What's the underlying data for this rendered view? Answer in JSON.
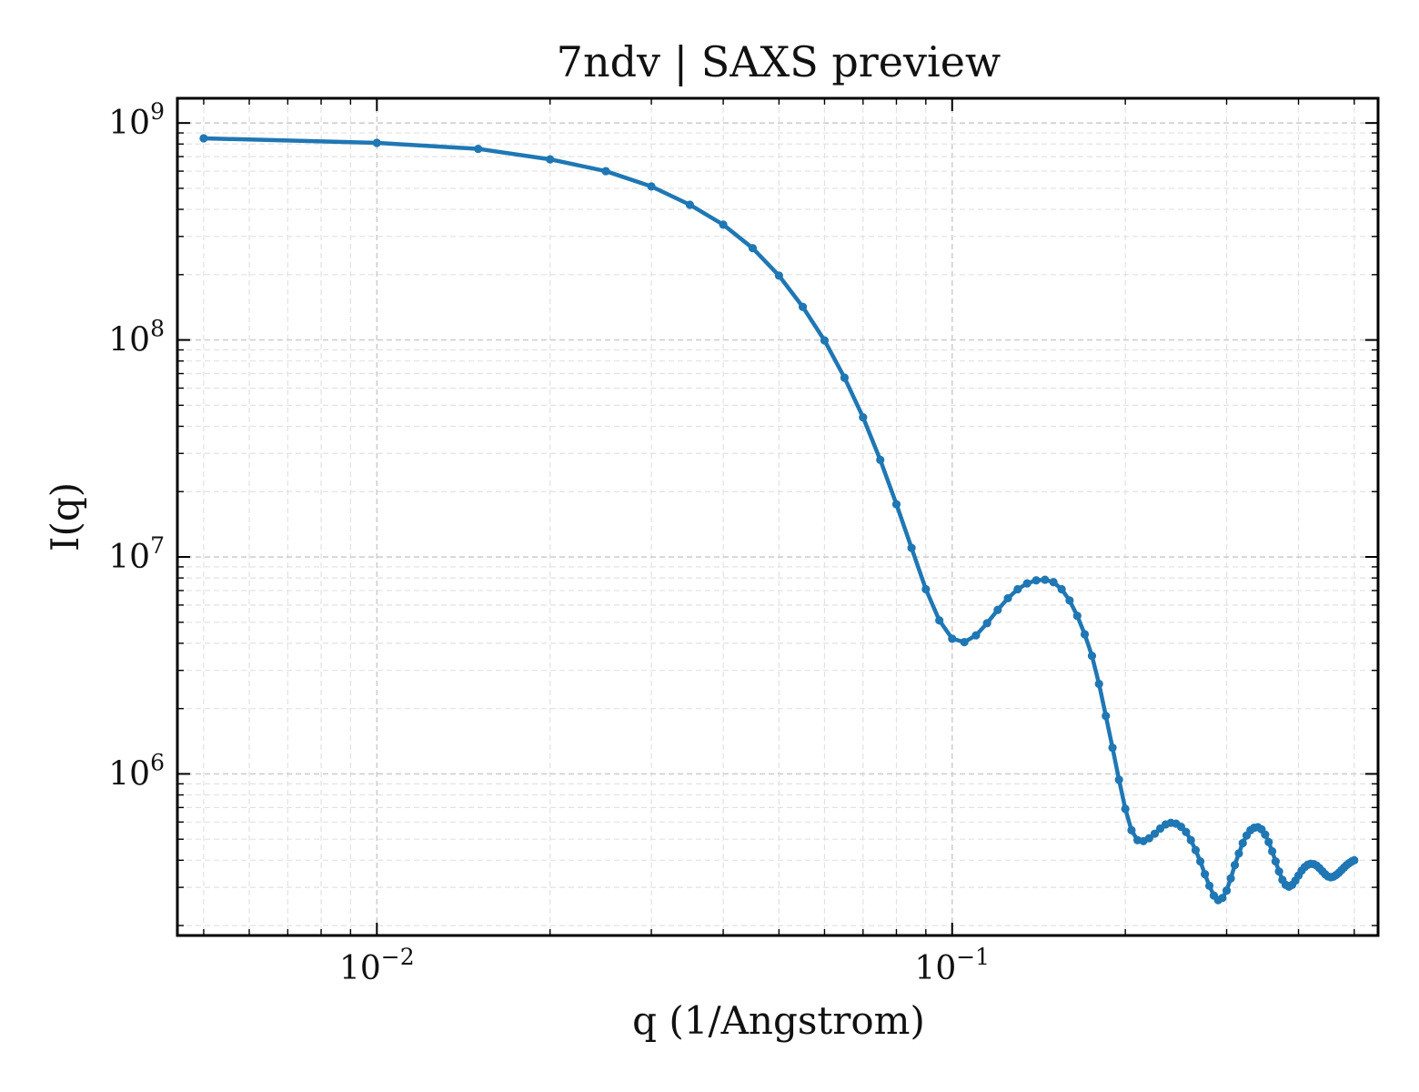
{
  "chart_data": {
    "type": "line",
    "title": "7ndv | SAXS preview",
    "xlabel": "q (1/Angstrom)",
    "ylabel": "I(q)",
    "xscale": "log",
    "yscale": "log",
    "xlim": [
      0.0045,
      0.55
    ],
    "ylim": [
      180000,
      1300000000
    ],
    "grid": true,
    "legend": "none",
    "color": "#1f77b4",
    "x_ticks": [
      {
        "value": 0.01,
        "base": "10",
        "exp": "−2"
      },
      {
        "value": 0.1,
        "base": "10",
        "exp": "−1"
      }
    ],
    "y_ticks": [
      {
        "value": 1000000,
        "base": "10",
        "exp": "6"
      },
      {
        "value": 10000000,
        "base": "10",
        "exp": "7"
      },
      {
        "value": 100000000,
        "base": "10",
        "exp": "8"
      },
      {
        "value": 1000000000,
        "base": "10",
        "exp": "9"
      }
    ],
    "series": [
      {
        "x": [
          0.005,
          0.01,
          0.015,
          0.02,
          0.025,
          0.03,
          0.035,
          0.04,
          0.045,
          0.05,
          0.055,
          0.06,
          0.065,
          0.07,
          0.075,
          0.08,
          0.085,
          0.09,
          0.095,
          0.1,
          0.105,
          0.11,
          0.115,
          0.12,
          0.125,
          0.13,
          0.135,
          0.14,
          0.145,
          0.15,
          0.155,
          0.16,
          0.165,
          0.17,
          0.175,
          0.18,
          0.185,
          0.19,
          0.195,
          0.2,
          0.205,
          0.21,
          0.215,
          0.22,
          0.225,
          0.23,
          0.235,
          0.24,
          0.245,
          0.25,
          0.255,
          0.26,
          0.265,
          0.27,
          0.275,
          0.28,
          0.285,
          0.29,
          0.295,
          0.3,
          0.305,
          0.31,
          0.315,
          0.32,
          0.325,
          0.33,
          0.335,
          0.34,
          0.345,
          0.35,
          0.355,
          0.36,
          0.365,
          0.37,
          0.375,
          0.38,
          0.385,
          0.39,
          0.395,
          0.4,
          0.405,
          0.41,
          0.415,
          0.42,
          0.425,
          0.43,
          0.435,
          0.44,
          0.445,
          0.45,
          0.455,
          0.46,
          0.465,
          0.47,
          0.475,
          0.48,
          0.485,
          0.49,
          0.495,
          0.5
        ],
        "y": [
          850000000,
          810000000,
          760000000,
          680000000,
          600000000,
          510000000,
          420000000,
          340000000,
          265000000,
          198000000,
          142000000,
          99500000,
          67000000,
          44000000,
          28000000,
          17500000,
          11000000,
          7100000,
          5100000,
          4200000,
          4050000,
          4350000,
          4950000,
          5700000,
          6450000,
          7100000,
          7550000,
          7800000,
          7850000,
          7650000,
          7100000,
          6300000,
          5350000,
          4400000,
          3500000,
          2600000,
          1850000,
          1320000,
          940000,
          690000,
          550000,
          495000,
          490000,
          505000,
          530000,
          560000,
          585000,
          595000,
          590000,
          570000,
          540000,
          495000,
          445000,
          395000,
          345000,
          305000,
          275000,
          262000,
          268000,
          290000,
          330000,
          380000,
          430000,
          480000,
          520000,
          550000,
          565000,
          568000,
          555000,
          525000,
          485000,
          440000,
          395000,
          355000,
          325000,
          308000,
          302000,
          308000,
          322000,
          340000,
          358000,
          372000,
          381000,
          385000,
          384000,
          378000,
          368000,
          356000,
          345000,
          337000,
          334000,
          336000,
          342000,
          350000,
          360000,
          370000,
          380000,
          388000,
          395000,
          400000
        ]
      }
    ]
  }
}
